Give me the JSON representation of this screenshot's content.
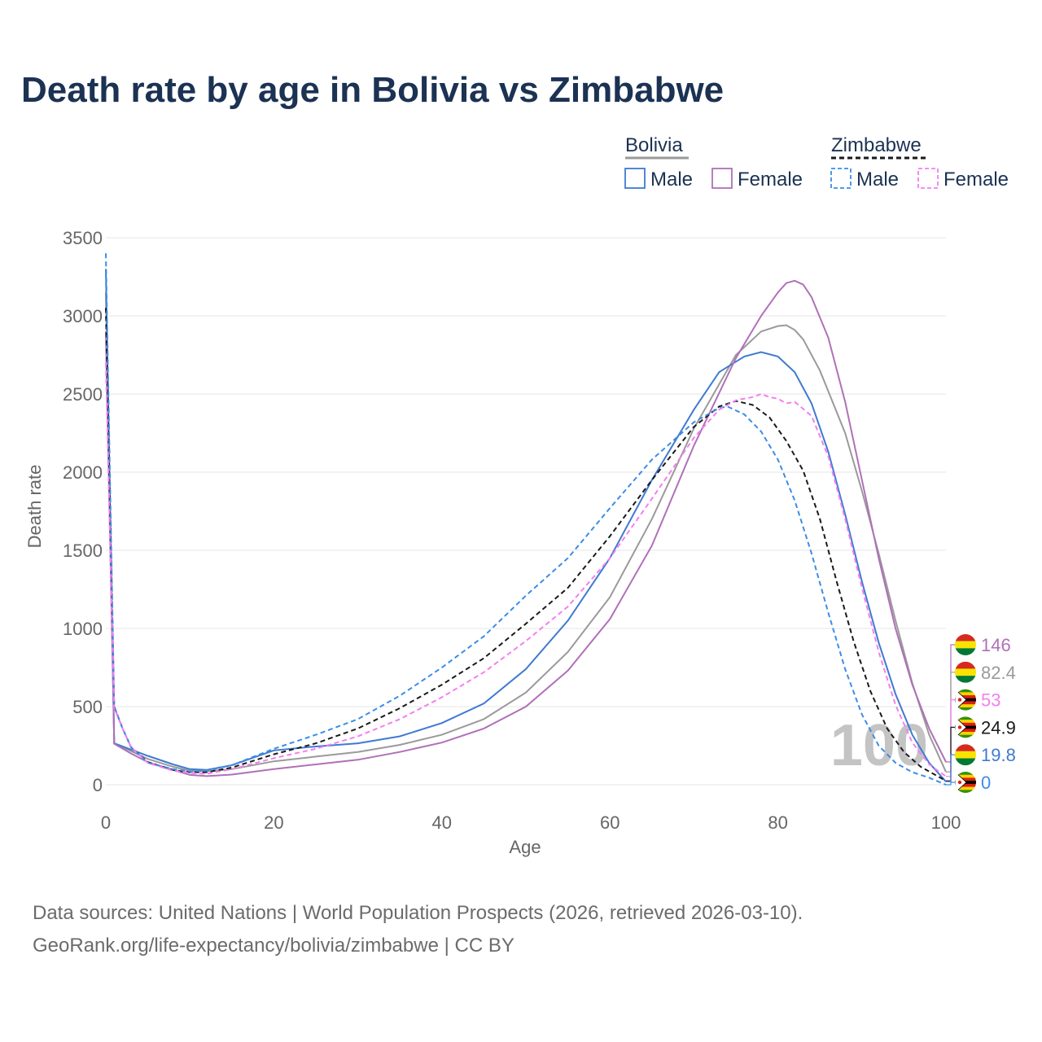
{
  "title": "Death rate by age in Bolivia vs Zimbabwe",
  "chart_data": {
    "type": "line",
    "xlabel": "Age",
    "ylabel": "Death rate",
    "xlim": [
      0,
      100
    ],
    "ylim": [
      0,
      3500
    ],
    "xticks": [
      0,
      20,
      40,
      60,
      80,
      100
    ],
    "yticks": [
      0,
      500,
      1000,
      1500,
      2000,
      2500,
      3000,
      3500
    ],
    "year_watermark": "100",
    "legend": {
      "groups": [
        {
          "label": "Bolivia",
          "line_color": "#9a9a9a",
          "dashed": false
        },
        {
          "label": "Zimbabwe",
          "line_color": "#1a1a1a",
          "dashed": true
        }
      ],
      "items": [
        "Male",
        "Female",
        "Male",
        "Female"
      ]
    },
    "series": [
      {
        "name": "Bolivia Total",
        "country": "Bolivia",
        "sex": "Total",
        "color": "#9a9a9a",
        "dashed": false,
        "end_label": "82.4",
        "points": [
          [
            0,
            3150
          ],
          [
            1,
            265
          ],
          [
            3,
            215
          ],
          [
            5,
            165
          ],
          [
            8,
            115
          ],
          [
            10,
            90
          ],
          [
            12,
            85
          ],
          [
            15,
            100
          ],
          [
            20,
            150
          ],
          [
            25,
            180
          ],
          [
            30,
            210
          ],
          [
            35,
            255
          ],
          [
            40,
            320
          ],
          [
            45,
            420
          ],
          [
            50,
            590
          ],
          [
            55,
            850
          ],
          [
            60,
            1200
          ],
          [
            65,
            1700
          ],
          [
            70,
            2280
          ],
          [
            75,
            2750
          ],
          [
            78,
            2900
          ],
          [
            80,
            2935
          ],
          [
            81,
            2940
          ],
          [
            82,
            2910
          ],
          [
            83,
            2850
          ],
          [
            85,
            2650
          ],
          [
            88,
            2250
          ],
          [
            90,
            1880
          ],
          [
            92,
            1480
          ],
          [
            94,
            1050
          ],
          [
            96,
            650
          ],
          [
            98,
            320
          ],
          [
            100,
            82.4
          ]
        ]
      },
      {
        "name": "Bolivia Male",
        "country": "Bolivia",
        "sex": "Male",
        "color": "#3f7ad1",
        "dashed": false,
        "end_label": "19.8",
        "points": [
          [
            0,
            3300
          ],
          [
            1,
            265
          ],
          [
            3,
            225
          ],
          [
            5,
            185
          ],
          [
            8,
            130
          ],
          [
            10,
            100
          ],
          [
            12,
            95
          ],
          [
            15,
            125
          ],
          [
            20,
            220
          ],
          [
            25,
            245
          ],
          [
            30,
            265
          ],
          [
            35,
            310
          ],
          [
            40,
            395
          ],
          [
            45,
            520
          ],
          [
            50,
            740
          ],
          [
            55,
            1050
          ],
          [
            60,
            1450
          ],
          [
            65,
            1950
          ],
          [
            70,
            2400
          ],
          [
            73,
            2640
          ],
          [
            76,
            2740
          ],
          [
            78,
            2768
          ],
          [
            80,
            2740
          ],
          [
            82,
            2640
          ],
          [
            84,
            2440
          ],
          [
            86,
            2130
          ],
          [
            88,
            1730
          ],
          [
            90,
            1300
          ],
          [
            92,
            910
          ],
          [
            94,
            580
          ],
          [
            96,
            320
          ],
          [
            98,
            140
          ],
          [
            100,
            19.8
          ]
        ]
      },
      {
        "name": "Bolivia Female",
        "country": "Bolivia",
        "sex": "Female",
        "color": "#b070b8",
        "dashed": false,
        "end_label": "146",
        "points": [
          [
            0,
            2900
          ],
          [
            1,
            262
          ],
          [
            3,
            200
          ],
          [
            5,
            145
          ],
          [
            8,
            95
          ],
          [
            10,
            63
          ],
          [
            12,
            55
          ],
          [
            15,
            65
          ],
          [
            20,
            100
          ],
          [
            25,
            130
          ],
          [
            30,
            160
          ],
          [
            35,
            210
          ],
          [
            40,
            270
          ],
          [
            45,
            360
          ],
          [
            50,
            500
          ],
          [
            55,
            730
          ],
          [
            60,
            1060
          ],
          [
            65,
            1530
          ],
          [
            70,
            2170
          ],
          [
            75,
            2730
          ],
          [
            78,
            3000
          ],
          [
            80,
            3150
          ],
          [
            81,
            3210
          ],
          [
            82,
            3225
          ],
          [
            83,
            3200
          ],
          [
            84,
            3120
          ],
          [
            86,
            2860
          ],
          [
            88,
            2450
          ],
          [
            90,
            1950
          ],
          [
            92,
            1450
          ],
          [
            94,
            1000
          ],
          [
            96,
            640
          ],
          [
            98,
            360
          ],
          [
            100,
            146
          ]
        ]
      },
      {
        "name": "Zimbabwe Total",
        "country": "Zimbabwe",
        "sex": "Total",
        "color": "#1a1a1a",
        "dashed": true,
        "end_label": "24.9",
        "points": [
          [
            0,
            3050
          ],
          [
            1,
            500
          ],
          [
            2,
            360
          ],
          [
            3,
            240
          ],
          [
            5,
            145
          ],
          [
            8,
            95
          ],
          [
            10,
            80
          ],
          [
            12,
            80
          ],
          [
            15,
            110
          ],
          [
            20,
            195
          ],
          [
            25,
            265
          ],
          [
            30,
            360
          ],
          [
            35,
            490
          ],
          [
            40,
            640
          ],
          [
            45,
            810
          ],
          [
            50,
            1030
          ],
          [
            55,
            1260
          ],
          [
            60,
            1590
          ],
          [
            65,
            1950
          ],
          [
            70,
            2290
          ],
          [
            73,
            2420
          ],
          [
            75,
            2455
          ],
          [
            77,
            2430
          ],
          [
            79,
            2350
          ],
          [
            81,
            2200
          ],
          [
            83,
            2010
          ],
          [
            85,
            1700
          ],
          [
            87,
            1300
          ],
          [
            89,
            920
          ],
          [
            91,
            600
          ],
          [
            93,
            360
          ],
          [
            95,
            210
          ],
          [
            97,
            115
          ],
          [
            100,
            24.9
          ]
        ]
      },
      {
        "name": "Zimbabwe Male",
        "country": "Zimbabwe",
        "sex": "Male",
        "color": "#3b8de8",
        "dashed": true,
        "end_label": "0",
        "points": [
          [
            0,
            3400
          ],
          [
            1,
            500
          ],
          [
            2,
            360
          ],
          [
            3,
            240
          ],
          [
            5,
            140
          ],
          [
            8,
            100
          ],
          [
            10,
            85
          ],
          [
            12,
            90
          ],
          [
            15,
            125
          ],
          [
            20,
            230
          ],
          [
            25,
            320
          ],
          [
            30,
            420
          ],
          [
            35,
            570
          ],
          [
            40,
            750
          ],
          [
            45,
            950
          ],
          [
            50,
            1210
          ],
          [
            55,
            1450
          ],
          [
            60,
            1770
          ],
          [
            65,
            2080
          ],
          [
            70,
            2320
          ],
          [
            73,
            2410
          ],
          [
            74,
            2420
          ],
          [
            76,
            2370
          ],
          [
            78,
            2260
          ],
          [
            80,
            2080
          ],
          [
            82,
            1820
          ],
          [
            84,
            1480
          ],
          [
            86,
            1100
          ],
          [
            88,
            740
          ],
          [
            90,
            450
          ],
          [
            92,
            250
          ],
          [
            94,
            140
          ],
          [
            96,
            80
          ],
          [
            98,
            45
          ],
          [
            100,
            0
          ]
        ]
      },
      {
        "name": "Zimbabwe Female",
        "country": "Zimbabwe",
        "sex": "Female",
        "color": "#f47ef0",
        "dashed": true,
        "end_label": "53",
        "points": [
          [
            0,
            2700
          ],
          [
            1,
            490
          ],
          [
            2,
            360
          ],
          [
            3,
            240
          ],
          [
            5,
            140
          ],
          [
            8,
            90
          ],
          [
            10,
            75
          ],
          [
            12,
            70
          ],
          [
            15,
            100
          ],
          [
            20,
            170
          ],
          [
            25,
            230
          ],
          [
            30,
            310
          ],
          [
            35,
            420
          ],
          [
            40,
            560
          ],
          [
            45,
            720
          ],
          [
            50,
            920
          ],
          [
            55,
            1140
          ],
          [
            60,
            1450
          ],
          [
            65,
            1830
          ],
          [
            70,
            2220
          ],
          [
            73,
            2400
          ],
          [
            75,
            2460
          ],
          [
            77,
            2480
          ],
          [
            78,
            2500
          ],
          [
            79,
            2480
          ],
          [
            80,
            2470
          ],
          [
            81,
            2440
          ],
          [
            82,
            2450
          ],
          [
            84,
            2360
          ],
          [
            86,
            2100
          ],
          [
            88,
            1700
          ],
          [
            90,
            1260
          ],
          [
            92,
            850
          ],
          [
            94,
            510
          ],
          [
            96,
            270
          ],
          [
            98,
            130
          ],
          [
            100,
            53
          ]
        ]
      }
    ]
  },
  "source": {
    "line1": "Data sources: United Nations | World Population Prospects (2026, retrieved 2026-03-10).",
    "line2": "GeoRank.org/life-expectancy/bolivia/zimbabwe | CC BY"
  }
}
